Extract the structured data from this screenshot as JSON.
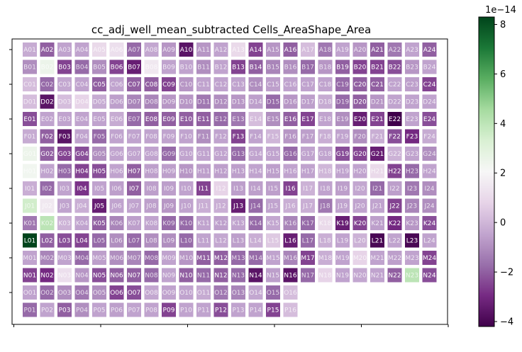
{
  "chart_data": {
    "type": "heatmap",
    "title": "cc_adj_well_mean_subtracted Cells_AreaShape_Area",
    "rows": [
      "A",
      "B",
      "C",
      "D",
      "E",
      "F",
      "G",
      "H",
      "I",
      "J",
      "K",
      "L",
      "M",
      "N",
      "O",
      "P"
    ],
    "cols": [
      "01",
      "02",
      "03",
      "04",
      "05",
      "06",
      "07",
      "08",
      "09",
      "10",
      "11",
      "12",
      "13",
      "14",
      "15",
      "16",
      "17",
      "18",
      "19",
      "20",
      "21",
      "22",
      "23",
      "24"
    ],
    "values": [
      [
        -0.3,
        -2.0,
        -0.5,
        -0.5,
        1.0,
        1.2,
        -1.8,
        -0.4,
        -0.8,
        -3.6,
        -0.8,
        -0.5,
        1.0,
        -2.5,
        -0.8,
        -2.0,
        0.2,
        -1.5,
        -0.5,
        -0.8,
        -2.0,
        -1.5,
        -0.5,
        -2.0
      ],
      [
        -1.0,
        2.5,
        -2.5,
        -1.8,
        -1.0,
        -2.5,
        -3.3,
        1.5,
        -0.5,
        -0.5,
        -1.0,
        -0.5,
        -2.5,
        -2.0,
        -1.2,
        -1.0,
        -1.8,
        -0.8,
        -2.0,
        -2.5,
        -2.5,
        -2.3,
        -0.8,
        -0.5
      ],
      [
        0.2,
        -1.8,
        -0.4,
        -0.5,
        -2.0,
        -0.5,
        -2.0,
        -2.0,
        -2.5,
        -0.8,
        -0.5,
        -0.5,
        -0.5,
        -1.0,
        -0.6,
        -0.5,
        -0.5,
        -0.5,
        -1.8,
        -2.0,
        -2.0,
        -0.5,
        -0.6,
        -2.5
      ],
      [
        0.2,
        -3.6,
        0.2,
        0.8,
        -0.3,
        -0.6,
        -1.2,
        -1.2,
        -0.8,
        -0.8,
        -1.5,
        -1.0,
        -0.8,
        -0.6,
        -1.8,
        -0.8,
        -0.6,
        -0.3,
        -1.8,
        -2.0,
        -0.8,
        -0.5,
        -0.5,
        -0.5
      ],
      [
        -2.3,
        -0.5,
        -0.5,
        -0.5,
        -0.5,
        -0.3,
        -1.8,
        -2.0,
        -2.0,
        -2.0,
        -2.0,
        -1.8,
        -1.5,
        0.2,
        -1.0,
        -2.0,
        -2.5,
        -0.5,
        -1.0,
        -3.3,
        -2.5,
        -4.2,
        -0.5,
        -2.3
      ],
      [
        -0.3,
        -2.0,
        -3.6,
        -0.5,
        -1.8,
        -0.5,
        -0.5,
        -0.5,
        -0.5,
        -0.5,
        -1.0,
        -0.5,
        -2.5,
        -0.5,
        0.0,
        -0.8,
        -0.6,
        -0.2,
        -0.5,
        -1.0,
        -0.2,
        -2.3,
        -3.0,
        -0.3
      ],
      [
        2.5,
        -2.0,
        -2.5,
        -2.3,
        -1.0,
        -0.5,
        -0.5,
        -0.5,
        -1.8,
        -0.5,
        -0.5,
        -0.5,
        -1.8,
        -0.5,
        -0.5,
        -1.8,
        -0.5,
        -0.5,
        -2.3,
        -2.5,
        -3.3,
        -0.1,
        -0.5,
        -1.0
      ],
      [
        2.3,
        -0.5,
        -1.8,
        -2.5,
        -2.3,
        -0.5,
        -2.0,
        -0.6,
        -0.6,
        -0.8,
        -0.6,
        -0.6,
        -0.6,
        -0.5,
        -0.6,
        -0.5,
        -0.5,
        0.0,
        -0.5,
        -0.5,
        1.0,
        -2.5,
        -1.8,
        -0.5
      ],
      [
        -0.2,
        -1.8,
        -0.5,
        -2.8,
        -0.5,
        -0.6,
        -2.0,
        -0.6,
        -0.6,
        -0.5,
        -2.5,
        0.8,
        -0.6,
        -0.6,
        -0.6,
        -2.5,
        -0.1,
        -0.5,
        -0.6,
        -0.4,
        -1.8,
        -0.6,
        -1.5,
        -1.0
      ],
      [
        3.5,
        1.5,
        -0.5,
        -0.2,
        -3.3,
        -0.5,
        -0.5,
        -0.6,
        -0.8,
        -0.5,
        -0.2,
        -0.2,
        -3.3,
        -1.8,
        -0.5,
        -0.2,
        -0.2,
        -1.5,
        -0.5,
        -0.5,
        -0.5,
        -2.5,
        -1.2,
        -1.0
      ],
      [
        -1.5,
        4.0,
        -0.1,
        -0.5,
        -2.0,
        -1.2,
        -0.6,
        -0.5,
        -1.8,
        -1.8,
        -0.5,
        -0.6,
        -0.5,
        -1.8,
        -0.4,
        -1.2,
        -1.8,
        1.0,
        -3.3,
        -2.5,
        -0.6,
        -3.0,
        -0.8,
        -2.3
      ],
      [
        8.3,
        -2.0,
        -2.3,
        -2.5,
        -1.8,
        -1.0,
        -1.8,
        -1.0,
        -1.0,
        -1.8,
        -0.5,
        -0.4,
        -0.6,
        -0.2,
        0.5,
        -3.3,
        -1.8,
        -0.2,
        -0.5,
        -0.1,
        -4.0,
        -0.5,
        -4.0,
        -0.5
      ],
      [
        -0.5,
        -1.2,
        -0.5,
        -1.8,
        -0.6,
        -1.0,
        -1.2,
        -1.8,
        -0.5,
        -0.8,
        -2.0,
        -2.0,
        -1.8,
        -1.8,
        -0.5,
        -1.2,
        -2.5,
        -0.2,
        -0.5,
        0.8,
        -0.5,
        -0.6,
        -0.5,
        -2.5
      ],
      [
        -2.5,
        -3.0,
        1.2,
        -0.8,
        -2.3,
        -2.0,
        -2.0,
        -1.8,
        -0.5,
        -2.0,
        -1.8,
        -2.0,
        -1.8,
        -3.6,
        -0.6,
        -3.6,
        -1.8,
        0.8,
        -0.5,
        -0.4,
        -0.5,
        -2.0,
        4.0,
        -2.3
      ],
      [
        -0.5,
        -1.8,
        -1.0,
        -1.5,
        -1.0,
        -2.5,
        -2.3,
        -0.4,
        -0.5,
        -0.5,
        -0.3,
        -1.5,
        -1.2,
        -0.4,
        -1.8,
        0.2,
        null,
        null,
        null,
        null,
        null,
        null,
        null,
        null
      ],
      [
        -1.8,
        -0.5,
        -2.0,
        -1.0,
        -0.5,
        -0.6,
        -0.5,
        -0.5,
        -2.5,
        -0.5,
        -0.5,
        -2.3,
        -0.5,
        -0.5,
        -2.5,
        0.2,
        null,
        null,
        null,
        null,
        null,
        null,
        null,
        null
      ]
    ],
    "vmin": -4.2,
    "vmax": 8.3,
    "colormap": "PRGn",
    "colorbar": {
      "ticks": [
        -4,
        -2,
        0,
        2,
        4,
        6,
        8
      ],
      "exponent_label": "1e−14"
    },
    "grid": false
  },
  "colors": {
    "colormap_stops": [
      "#40004b",
      "#762a83",
      "#9970ab",
      "#c2a5cf",
      "#e7d4e8",
      "#f7f7f7",
      "#d9f0d3",
      "#a6dba0",
      "#5aae61",
      "#1b7837",
      "#00441b"
    ],
    "background": "#ffffff",
    "axes": "#000000"
  }
}
